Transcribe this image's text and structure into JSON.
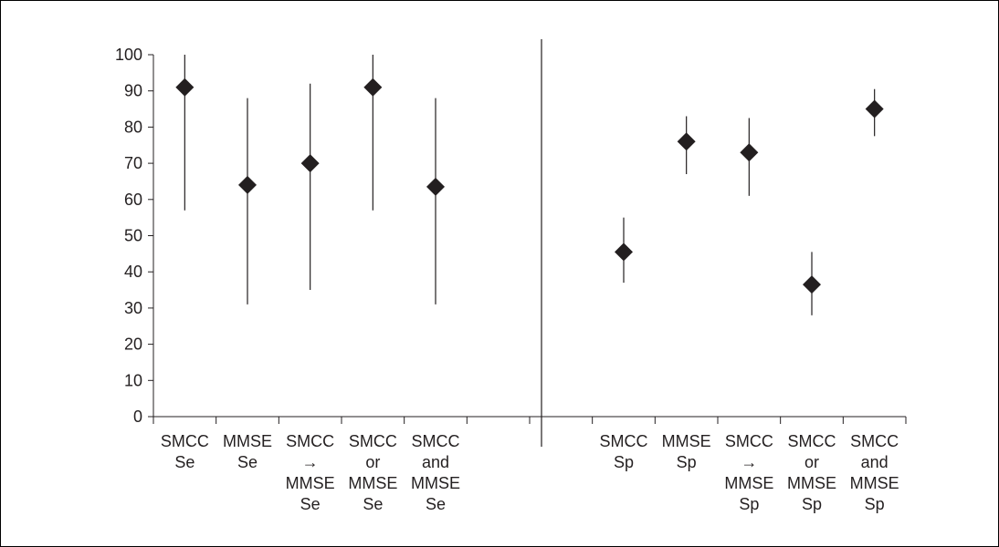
{
  "chart_data": {
    "type": "scatter",
    "description_style": "point estimates with vertical confidence-interval bars",
    "ylim": [
      0,
      100
    ],
    "yticks": [
      0,
      10,
      20,
      30,
      40,
      50,
      60,
      70,
      80,
      90,
      100
    ],
    "grid": false,
    "colors": {
      "marker": "#231f20",
      "line": "#231f20"
    },
    "categories": [
      {
        "label": [
          "SMCC",
          "Se"
        ],
        "value": 91,
        "low": 57,
        "high": 100
      },
      {
        "label": [
          "MMSE",
          "Se"
        ],
        "value": 64,
        "low": 31,
        "high": 88
      },
      {
        "label": [
          "SMCC",
          "→",
          "MMSE",
          "Se"
        ],
        "value": 70,
        "low": 35,
        "high": 92
      },
      {
        "label": [
          "SMCC",
          "or",
          "MMSE",
          "Se"
        ],
        "value": 91,
        "low": 57,
        "high": 100
      },
      {
        "label": [
          "SMCC",
          "and",
          "MMSE",
          "Se"
        ],
        "value": 63.5,
        "low": 31,
        "high": 88
      },
      {
        "label": [],
        "value": null,
        "low": null,
        "high": null
      },
      {
        "label": [],
        "value": null,
        "low": null,
        "high": null
      },
      {
        "label": [
          "SMCC",
          "Sp"
        ],
        "value": 45.5,
        "low": 37,
        "high": 55
      },
      {
        "label": [
          "MMSE",
          "Sp"
        ],
        "value": 76,
        "low": 67,
        "high": 83
      },
      {
        "label": [
          "SMCC",
          "→",
          "MMSE",
          "Sp"
        ],
        "value": 73,
        "low": 61,
        "high": 82.5
      },
      {
        "label": [
          "SMCC",
          "or",
          "MMSE",
          "Sp"
        ],
        "value": 36.5,
        "low": 28,
        "high": 45.5
      },
      {
        "label": [
          "SMCC",
          "and",
          "MMSE",
          "Sp"
        ],
        "value": 85,
        "low": 77.5,
        "high": 90.5
      }
    ]
  }
}
